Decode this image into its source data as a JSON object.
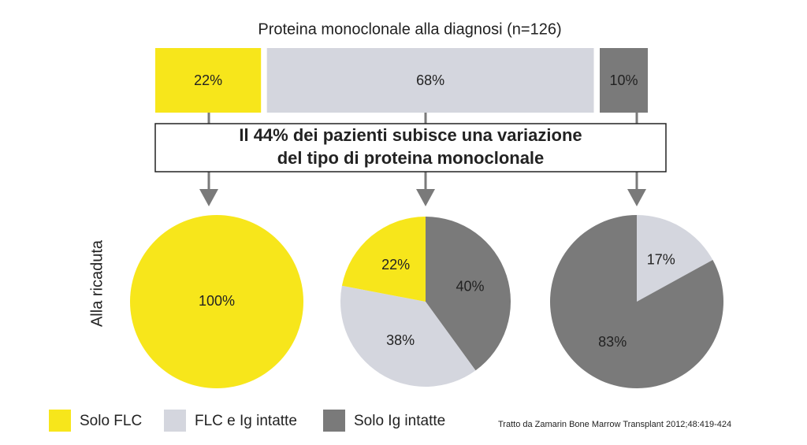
{
  "chart_data": [
    {
      "type": "bar",
      "title": "Proteina monoclonale alla diagnosi (n=126)",
      "series": [
        {
          "name": "Solo FLC",
          "color": "#f7e61b",
          "values": [
            22
          ],
          "value_labels": [
            "22%"
          ]
        },
        {
          "name": "FLC e Ig intatte",
          "color": "#d4d6de",
          "values": [
            68
          ],
          "value_labels": [
            "68%"
          ]
        },
        {
          "name": "Solo Ig intatte",
          "color": "#7a7a7a",
          "values": [
            10
          ],
          "value_labels": [
            "10%"
          ]
        }
      ]
    },
    {
      "type": "pie",
      "values": [
        100
      ],
      "value_labels": [
        "100%"
      ],
      "colors": [
        "#f7e61b"
      ]
    },
    {
      "type": "pie",
      "values": [
        40,
        38,
        22
      ],
      "value_labels": [
        "40%",
        "38%",
        "22%"
      ],
      "colors": [
        "#7a7a7a",
        "#d4d6de",
        "#f7e61b"
      ]
    },
    {
      "type": "pie",
      "values": [
        17,
        83
      ],
      "value_labels": [
        "17%",
        "83%"
      ],
      "colors": [
        "#d4d6de",
        "#7a7a7a"
      ]
    }
  ],
  "annotation": [
    "Il 44% dei pazienti subisce una variazione",
    "del tipo di proteina monoclonale"
  ],
  "row_label": "Alla ricaduta",
  "source": "Tratto da Zamarin Bone Marrow Transplant 2012;48:419-424"
}
